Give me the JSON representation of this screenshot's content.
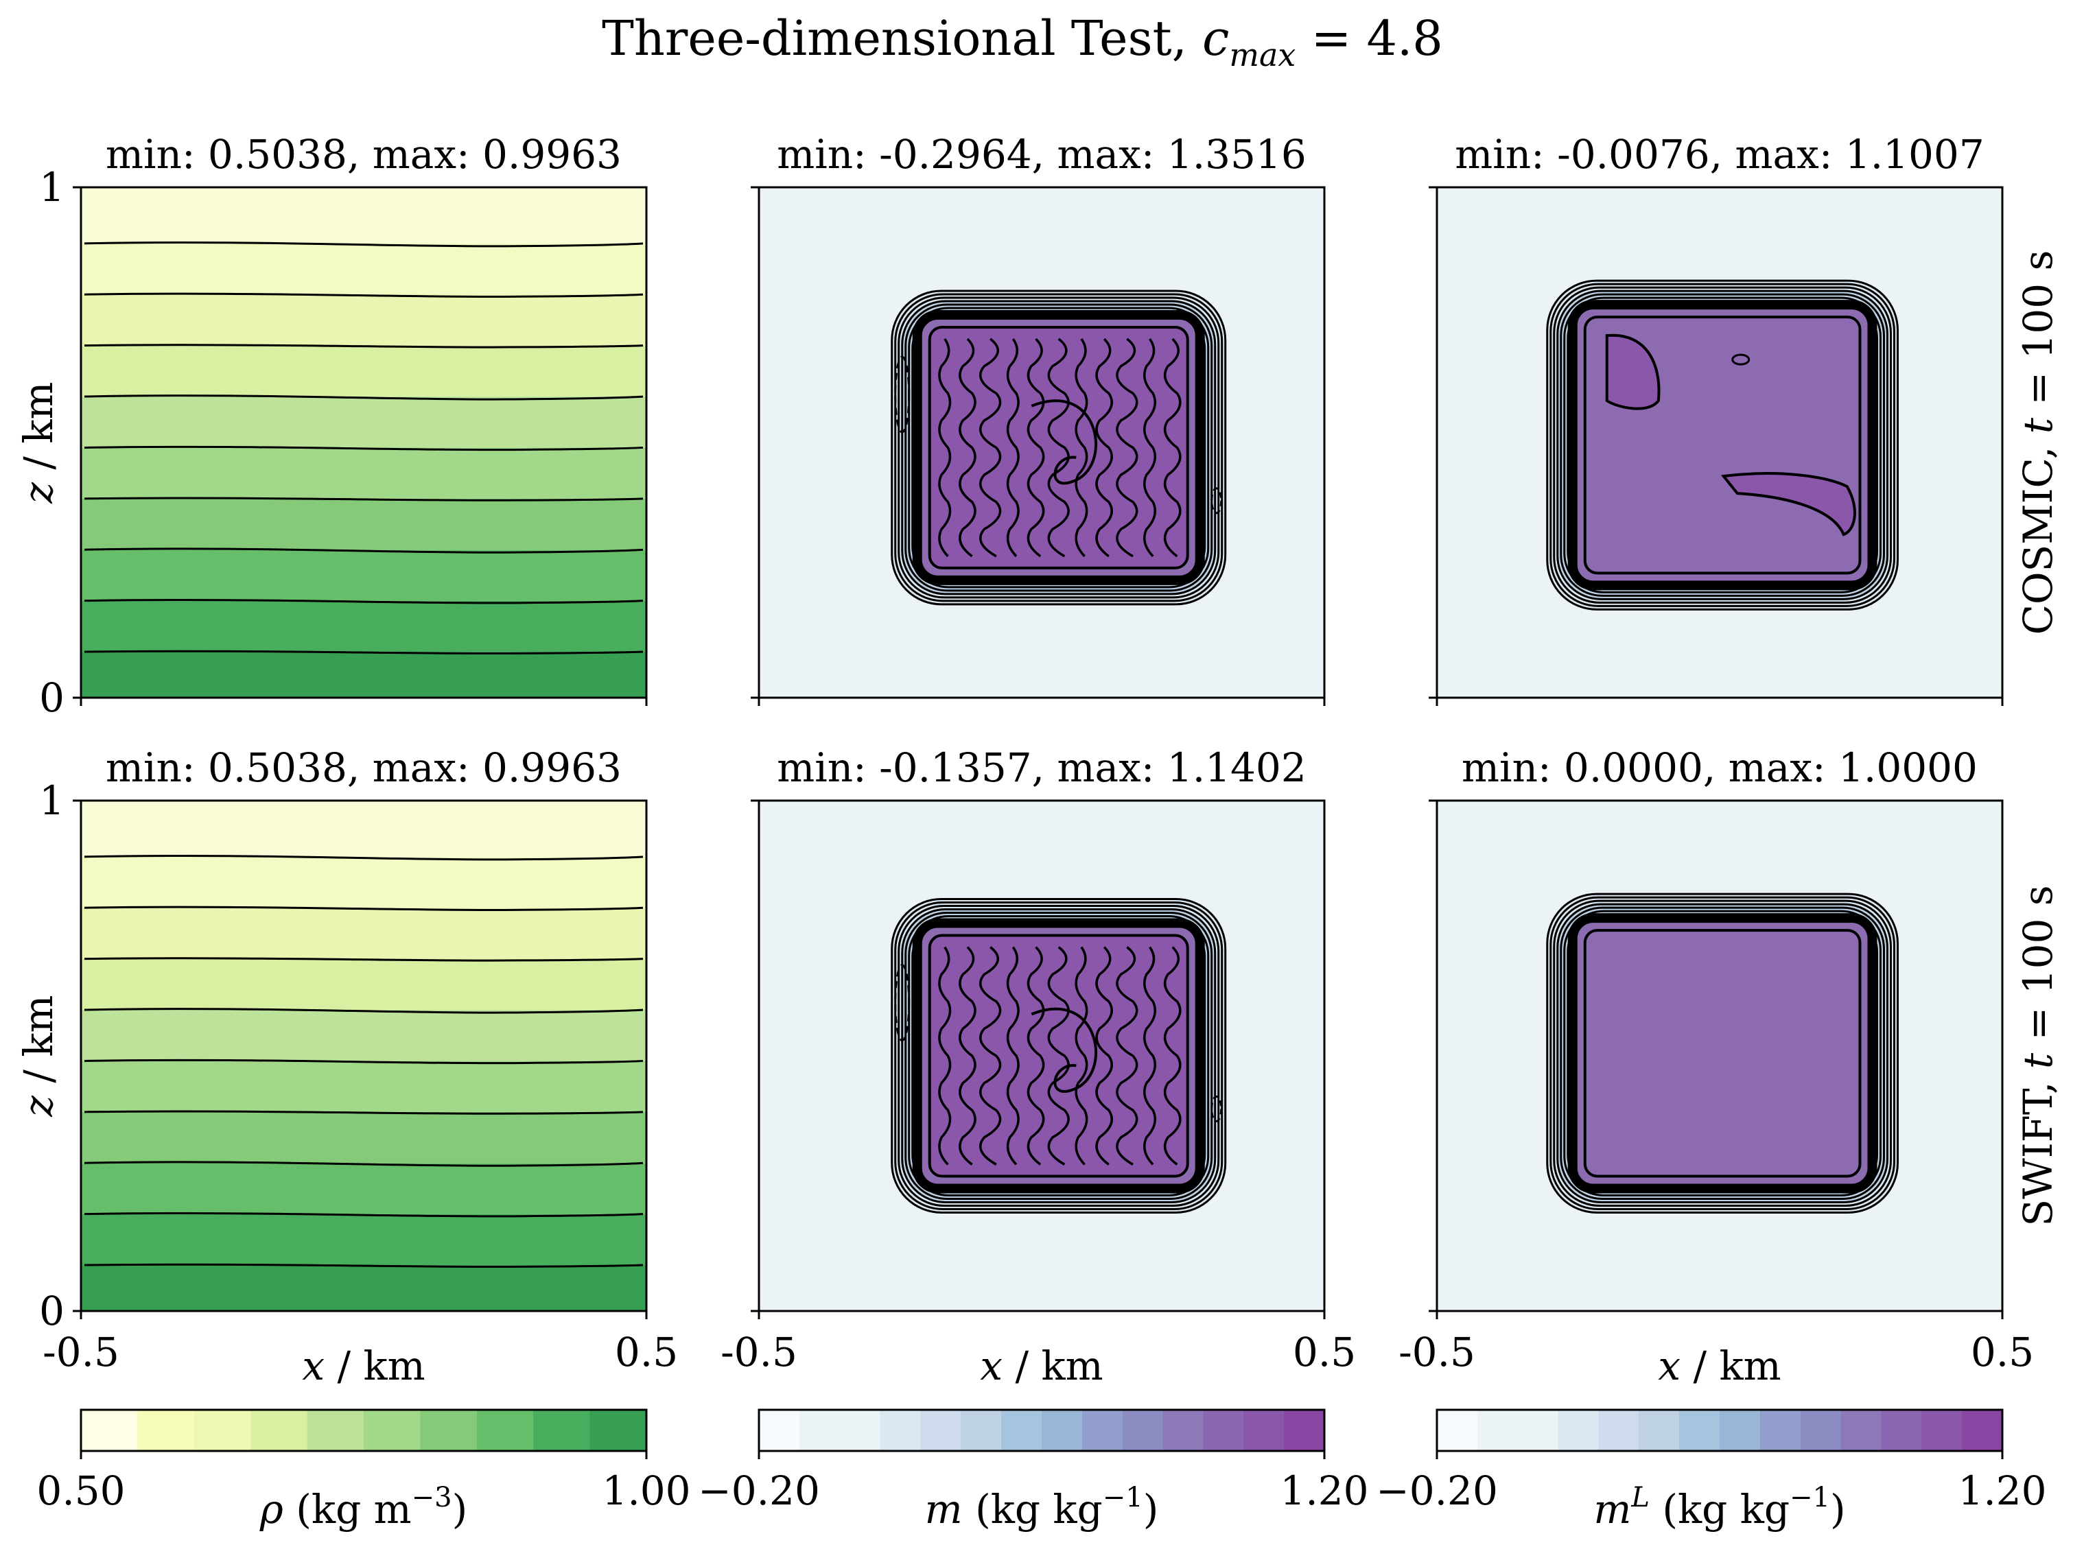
{
  "figure": {
    "title": "Three-dimensional Test, c_max = 4.8",
    "title_main": "Three-dimensional Test, ",
    "title_var": "c",
    "title_sub": "max",
    "title_tail": " = 4.8"
  },
  "rows": [
    {
      "label_prefix": "COSMIC, ",
      "label_var": "t",
      "label_suffix": " = 100 s"
    },
    {
      "label_prefix": "SWIFT, ",
      "label_var": "t",
      "label_suffix": " = 100 s"
    }
  ],
  "axes": {
    "ylabel_var": "z",
    "ylabel_unit": " / km",
    "xlabel_var": "x",
    "xlabel_unit": " / km",
    "yticks": [
      "0",
      "1"
    ],
    "xticks": [
      "-0.5",
      "0.5"
    ]
  },
  "colorbars": [
    {
      "var": "ρ",
      "sup": "",
      "unit_pre": " (kg m",
      "unit_exp": "−3",
      "unit_post": ")",
      "min_label": "0.50",
      "max_label": "1.00",
      "colors": [
        "#ffffe5",
        "#f7fcb9",
        "#eef8b1",
        "#d9f0a3",
        "#bde39a",
        "#a2d88a",
        "#84ca79",
        "#66bd6a",
        "#48ad5c",
        "#379f52"
      ]
    },
    {
      "var": "m",
      "sup": "",
      "unit_pre": " (kg kg",
      "unit_exp": "−1",
      "unit_post": ")",
      "min_label": "−0.20",
      "max_label": "1.20",
      "colors": [
        "#f7fbfd",
        "#ebf3f7",
        "#ebf3f7",
        "#dbe7f1",
        "#cddbec",
        "#bfd1e5",
        "#a7c4de",
        "#9ab6d7",
        "#929fcd",
        "#8a8cc2",
        "#8c7ab8",
        "#8c67b1",
        "#8a57ab",
        "#8846a2"
      ]
    },
    {
      "var": "m",
      "sup": "L",
      "unit_pre": " (kg kg",
      "unit_exp": "−1",
      "unit_post": ")",
      "min_label": "−0.20",
      "max_label": "1.20",
      "colors": [
        "#f7fbfd",
        "#ebf3f7",
        "#ebf3f7",
        "#dbe7f1",
        "#cddbec",
        "#bfd1e5",
        "#a7c4de",
        "#9ab6d7",
        "#929fcd",
        "#8a8cc2",
        "#8c7ab8",
        "#8c67b1",
        "#8a57ab",
        "#8846a2"
      ]
    }
  ],
  "chart_data": [
    {
      "type": "heatmap",
      "panel": "rho-cosmic",
      "title": "min: 0.5038, max: 0.9963",
      "min": 0.5038,
      "max": 0.9963,
      "xlim": [
        -0.5,
        0.5
      ],
      "ylim": [
        0,
        1
      ],
      "field": "density, decreasing with height",
      "contour_levels_z": [
        0.09,
        0.19,
        0.29,
        0.39,
        0.49,
        0.59,
        0.69,
        0.79,
        0.89
      ]
    },
    {
      "type": "heatmap",
      "panel": "m-cosmic",
      "title": "min: -0.2964, max: 1.3516",
      "min": -0.2964,
      "max": 1.3516,
      "xlim": [
        -0.5,
        0.5
      ],
      "ylim": [
        0,
        1
      ],
      "field": "tracer block",
      "block": {
        "x": [
          -0.22,
          0.28
        ],
        "z": [
          0.23,
          0.75
        ]
      }
    },
    {
      "type": "heatmap",
      "panel": "mL-cosmic",
      "title": "min: -0.0076, max: 1.1007",
      "min": -0.0076,
      "max": 1.1007,
      "xlim": [
        -0.5,
        0.5
      ],
      "ylim": [
        0,
        1
      ],
      "field": "tracer block",
      "block": {
        "x": [
          -0.26,
          0.27
        ],
        "z": [
          0.22,
          0.77
        ]
      }
    },
    {
      "type": "heatmap",
      "panel": "rho-swift",
      "title": "min: 0.5038, max: 0.9963",
      "min": 0.5038,
      "max": 0.9963,
      "xlim": [
        -0.5,
        0.5
      ],
      "ylim": [
        0,
        1
      ],
      "field": "density, decreasing with height",
      "contour_levels_z": [
        0.09,
        0.19,
        0.29,
        0.39,
        0.49,
        0.59,
        0.69,
        0.79,
        0.89
      ]
    },
    {
      "type": "heatmap",
      "panel": "m-swift",
      "title": "min: -0.1357, max: 1.1402",
      "min": -0.1357,
      "max": 1.1402,
      "xlim": [
        -0.5,
        0.5
      ],
      "ylim": [
        0,
        1
      ],
      "field": "tracer block",
      "block": {
        "x": [
          -0.22,
          0.28
        ],
        "z": [
          0.24,
          0.76
        ]
      }
    },
    {
      "type": "heatmap",
      "panel": "mL-swift",
      "title": "min: 0.0000, max: 1.0000",
      "min": 0.0,
      "max": 1.0,
      "xlim": [
        -0.5,
        0.5
      ],
      "ylim": [
        0,
        1
      ],
      "field": "tracer block",
      "block": {
        "x": [
          -0.26,
          0.27
        ],
        "z": [
          0.24,
          0.77
        ]
      }
    }
  ]
}
